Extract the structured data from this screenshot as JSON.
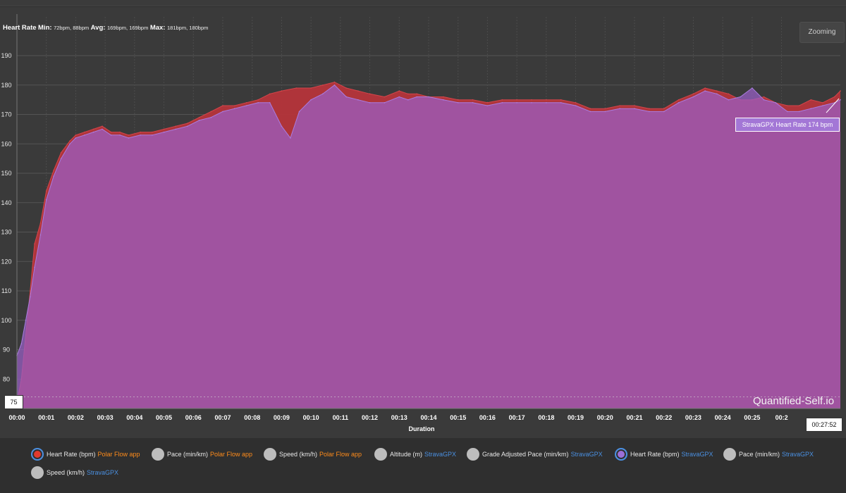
{
  "chart_title": {
    "label": "Heart Rate",
    "min_label": "Min:",
    "min_value": "72bpm, 88bpm",
    "avg_label": "Avg:",
    "avg_value": "169bpm, 169bpm",
    "max_label": "Max:",
    "max_value": "181bpm, 180bpm"
  },
  "zoom_button": "Zooming",
  "watermark": "Quantified-Self.io",
  "cursor": {
    "time": "00:27:52",
    "y_value": "75",
    "tooltip": "StravaGPX Heart Rate 174 bpm"
  },
  "legend": [
    {
      "label": "Heart Rate (bpm)",
      "source": "Polar Flow app",
      "source_color": "#ff8c1a",
      "active": true,
      "dot_color": "#e03a2f"
    },
    {
      "label": "Pace (min/km)",
      "source": "Polar Flow app",
      "source_color": "#ff8c1a",
      "active": false
    },
    {
      "label": "Speed (km/h)",
      "source": "Polar Flow app",
      "source_color": "#ff8c1a",
      "active": false
    },
    {
      "label": "Altitude (m)",
      "source": "StravaGPX",
      "source_color": "#4a90e2",
      "active": false
    },
    {
      "label": "Grade Adjusted Pace (min/km)",
      "source": "StravaGPX",
      "source_color": "#4a90e2",
      "active": false
    },
    {
      "label": "Heart Rate (bpm)",
      "source": "StravaGPX",
      "source_color": "#4a90e2",
      "active": true,
      "dot_color": "#9b6fd8"
    },
    {
      "label": "Pace (min/km)",
      "source": "StravaGPX",
      "source_color": "#4a90e2",
      "active": false
    },
    {
      "label": "Speed (km/h)",
      "source": "StravaGPX",
      "source_color": "#4a90e2",
      "active": false
    }
  ],
  "colors": {
    "polar_series": "#b5343a",
    "strava_series": "#9a5fc7",
    "background": "#3a3a3a",
    "grid": "#555555"
  },
  "chart_data": {
    "type": "area",
    "xlabel": "Duration",
    "ylabel": "",
    "x_ticks": [
      "00:00",
      "00:01",
      "00:02",
      "00:03",
      "00:04",
      "00:05",
      "00:06",
      "00:07",
      "00:08",
      "00:09",
      "00:10",
      "00:11",
      "00:12",
      "00:13",
      "00:14",
      "00:15",
      "00:16",
      "00:17",
      "00:18",
      "00:19",
      "00:20",
      "00:21",
      "00:22",
      "00:23",
      "00:24",
      "00:25",
      "00:2"
    ],
    "y_ticks": [
      80,
      90,
      100,
      110,
      120,
      130,
      140,
      150,
      160,
      170,
      180,
      190
    ],
    "xlim": [
      0,
      28
    ],
    "ylim": [
      70,
      196
    ],
    "grid": true,
    "x_unit": "minutes",
    "series": [
      {
        "name": "Heart Rate (bpm) Polar Flow app",
        "color": "#b5343a",
        "points": [
          [
            0,
            72
          ],
          [
            0.15,
            80
          ],
          [
            0.3,
            95
          ],
          [
            0.45,
            110
          ],
          [
            0.6,
            126
          ],
          [
            0.8,
            133
          ],
          [
            1,
            144
          ],
          [
            1.25,
            151
          ],
          [
            1.5,
            157
          ],
          [
            1.8,
            161
          ],
          [
            2,
            163
          ],
          [
            2.3,
            164
          ],
          [
            2.6,
            165
          ],
          [
            2.9,
            166
          ],
          [
            3.2,
            164
          ],
          [
            3.5,
            164
          ],
          [
            3.8,
            163
          ],
          [
            4.2,
            164
          ],
          [
            4.6,
            164
          ],
          [
            5,
            165
          ],
          [
            5.4,
            166
          ],
          [
            5.8,
            167
          ],
          [
            6.2,
            169
          ],
          [
            6.6,
            171
          ],
          [
            7,
            173
          ],
          [
            7.4,
            173
          ],
          [
            7.8,
            174
          ],
          [
            8.2,
            175
          ],
          [
            8.6,
            177
          ],
          [
            9,
            178
          ],
          [
            9.5,
            179
          ],
          [
            10,
            179
          ],
          [
            10.4,
            180
          ],
          [
            10.8,
            181
          ],
          [
            11.2,
            179
          ],
          [
            11.6,
            178
          ],
          [
            12,
            177
          ],
          [
            12.5,
            176
          ],
          [
            13,
            178
          ],
          [
            13.3,
            177
          ],
          [
            13.6,
            177
          ],
          [
            14,
            176
          ],
          [
            14.5,
            176
          ],
          [
            15,
            175
          ],
          [
            15.5,
            175
          ],
          [
            16,
            174
          ],
          [
            16.5,
            175
          ],
          [
            17,
            175
          ],
          [
            17.5,
            175
          ],
          [
            18,
            175
          ],
          [
            18.5,
            175
          ],
          [
            19,
            174
          ],
          [
            19.5,
            172
          ],
          [
            20,
            172
          ],
          [
            20.5,
            173
          ],
          [
            21,
            173
          ],
          [
            21.5,
            172
          ],
          [
            22,
            172
          ],
          [
            22.5,
            175
          ],
          [
            23,
            177
          ],
          [
            23.4,
            179
          ],
          [
            23.8,
            178
          ],
          [
            24.2,
            177
          ],
          [
            24.6,
            175
          ],
          [
            25,
            175
          ],
          [
            25.4,
            176
          ],
          [
            25.8,
            174
          ],
          [
            26.2,
            173
          ],
          [
            26.6,
            173
          ],
          [
            27,
            175
          ],
          [
            27.4,
            174
          ],
          [
            27.8,
            176
          ],
          [
            28,
            178
          ]
        ]
      },
      {
        "name": "Heart Rate (bpm) StravaGPX",
        "color": "#9a5fc7",
        "points": [
          [
            0,
            88
          ],
          [
            0.15,
            92
          ],
          [
            0.3,
            100
          ],
          [
            0.45,
            108
          ],
          [
            0.6,
            118
          ],
          [
            0.8,
            129
          ],
          [
            1,
            141
          ],
          [
            1.25,
            149
          ],
          [
            1.5,
            155
          ],
          [
            1.8,
            160
          ],
          [
            2,
            162
          ],
          [
            2.3,
            163
          ],
          [
            2.6,
            164
          ],
          [
            2.9,
            165
          ],
          [
            3.2,
            163
          ],
          [
            3.5,
            163
          ],
          [
            3.8,
            162
          ],
          [
            4.2,
            163
          ],
          [
            4.6,
            163
          ],
          [
            5,
            164
          ],
          [
            5.4,
            165
          ],
          [
            5.8,
            166
          ],
          [
            6.2,
            168
          ],
          [
            6.6,
            169
          ],
          [
            7,
            171
          ],
          [
            7.4,
            172
          ],
          [
            7.8,
            173
          ],
          [
            8.2,
            174
          ],
          [
            8.6,
            174
          ],
          [
            9,
            166
          ],
          [
            9.3,
            162
          ],
          [
            9.6,
            171
          ],
          [
            10,
            175
          ],
          [
            10.4,
            177
          ],
          [
            10.8,
            180
          ],
          [
            11.2,
            176
          ],
          [
            11.6,
            175
          ],
          [
            12,
            174
          ],
          [
            12.5,
            174
          ],
          [
            13,
            176
          ],
          [
            13.3,
            175
          ],
          [
            13.6,
            176
          ],
          [
            14,
            176
          ],
          [
            14.5,
            175
          ],
          [
            15,
            174
          ],
          [
            15.5,
            174
          ],
          [
            16,
            173
          ],
          [
            16.5,
            174
          ],
          [
            17,
            174
          ],
          [
            17.5,
            174
          ],
          [
            18,
            174
          ],
          [
            18.5,
            174
          ],
          [
            19,
            173
          ],
          [
            19.5,
            171
          ],
          [
            20,
            171
          ],
          [
            20.5,
            172
          ],
          [
            21,
            172
          ],
          [
            21.5,
            171
          ],
          [
            22,
            171
          ],
          [
            22.5,
            174
          ],
          [
            23,
            176
          ],
          [
            23.4,
            178
          ],
          [
            23.8,
            177
          ],
          [
            24.2,
            175
          ],
          [
            24.6,
            176
          ],
          [
            25,
            179
          ],
          [
            25.4,
            175
          ],
          [
            25.8,
            174
          ],
          [
            26.2,
            171
          ],
          [
            26.6,
            171
          ],
          [
            27,
            172
          ],
          [
            27.4,
            173
          ],
          [
            27.8,
            174
          ],
          [
            28,
            175
          ]
        ]
      }
    ]
  }
}
